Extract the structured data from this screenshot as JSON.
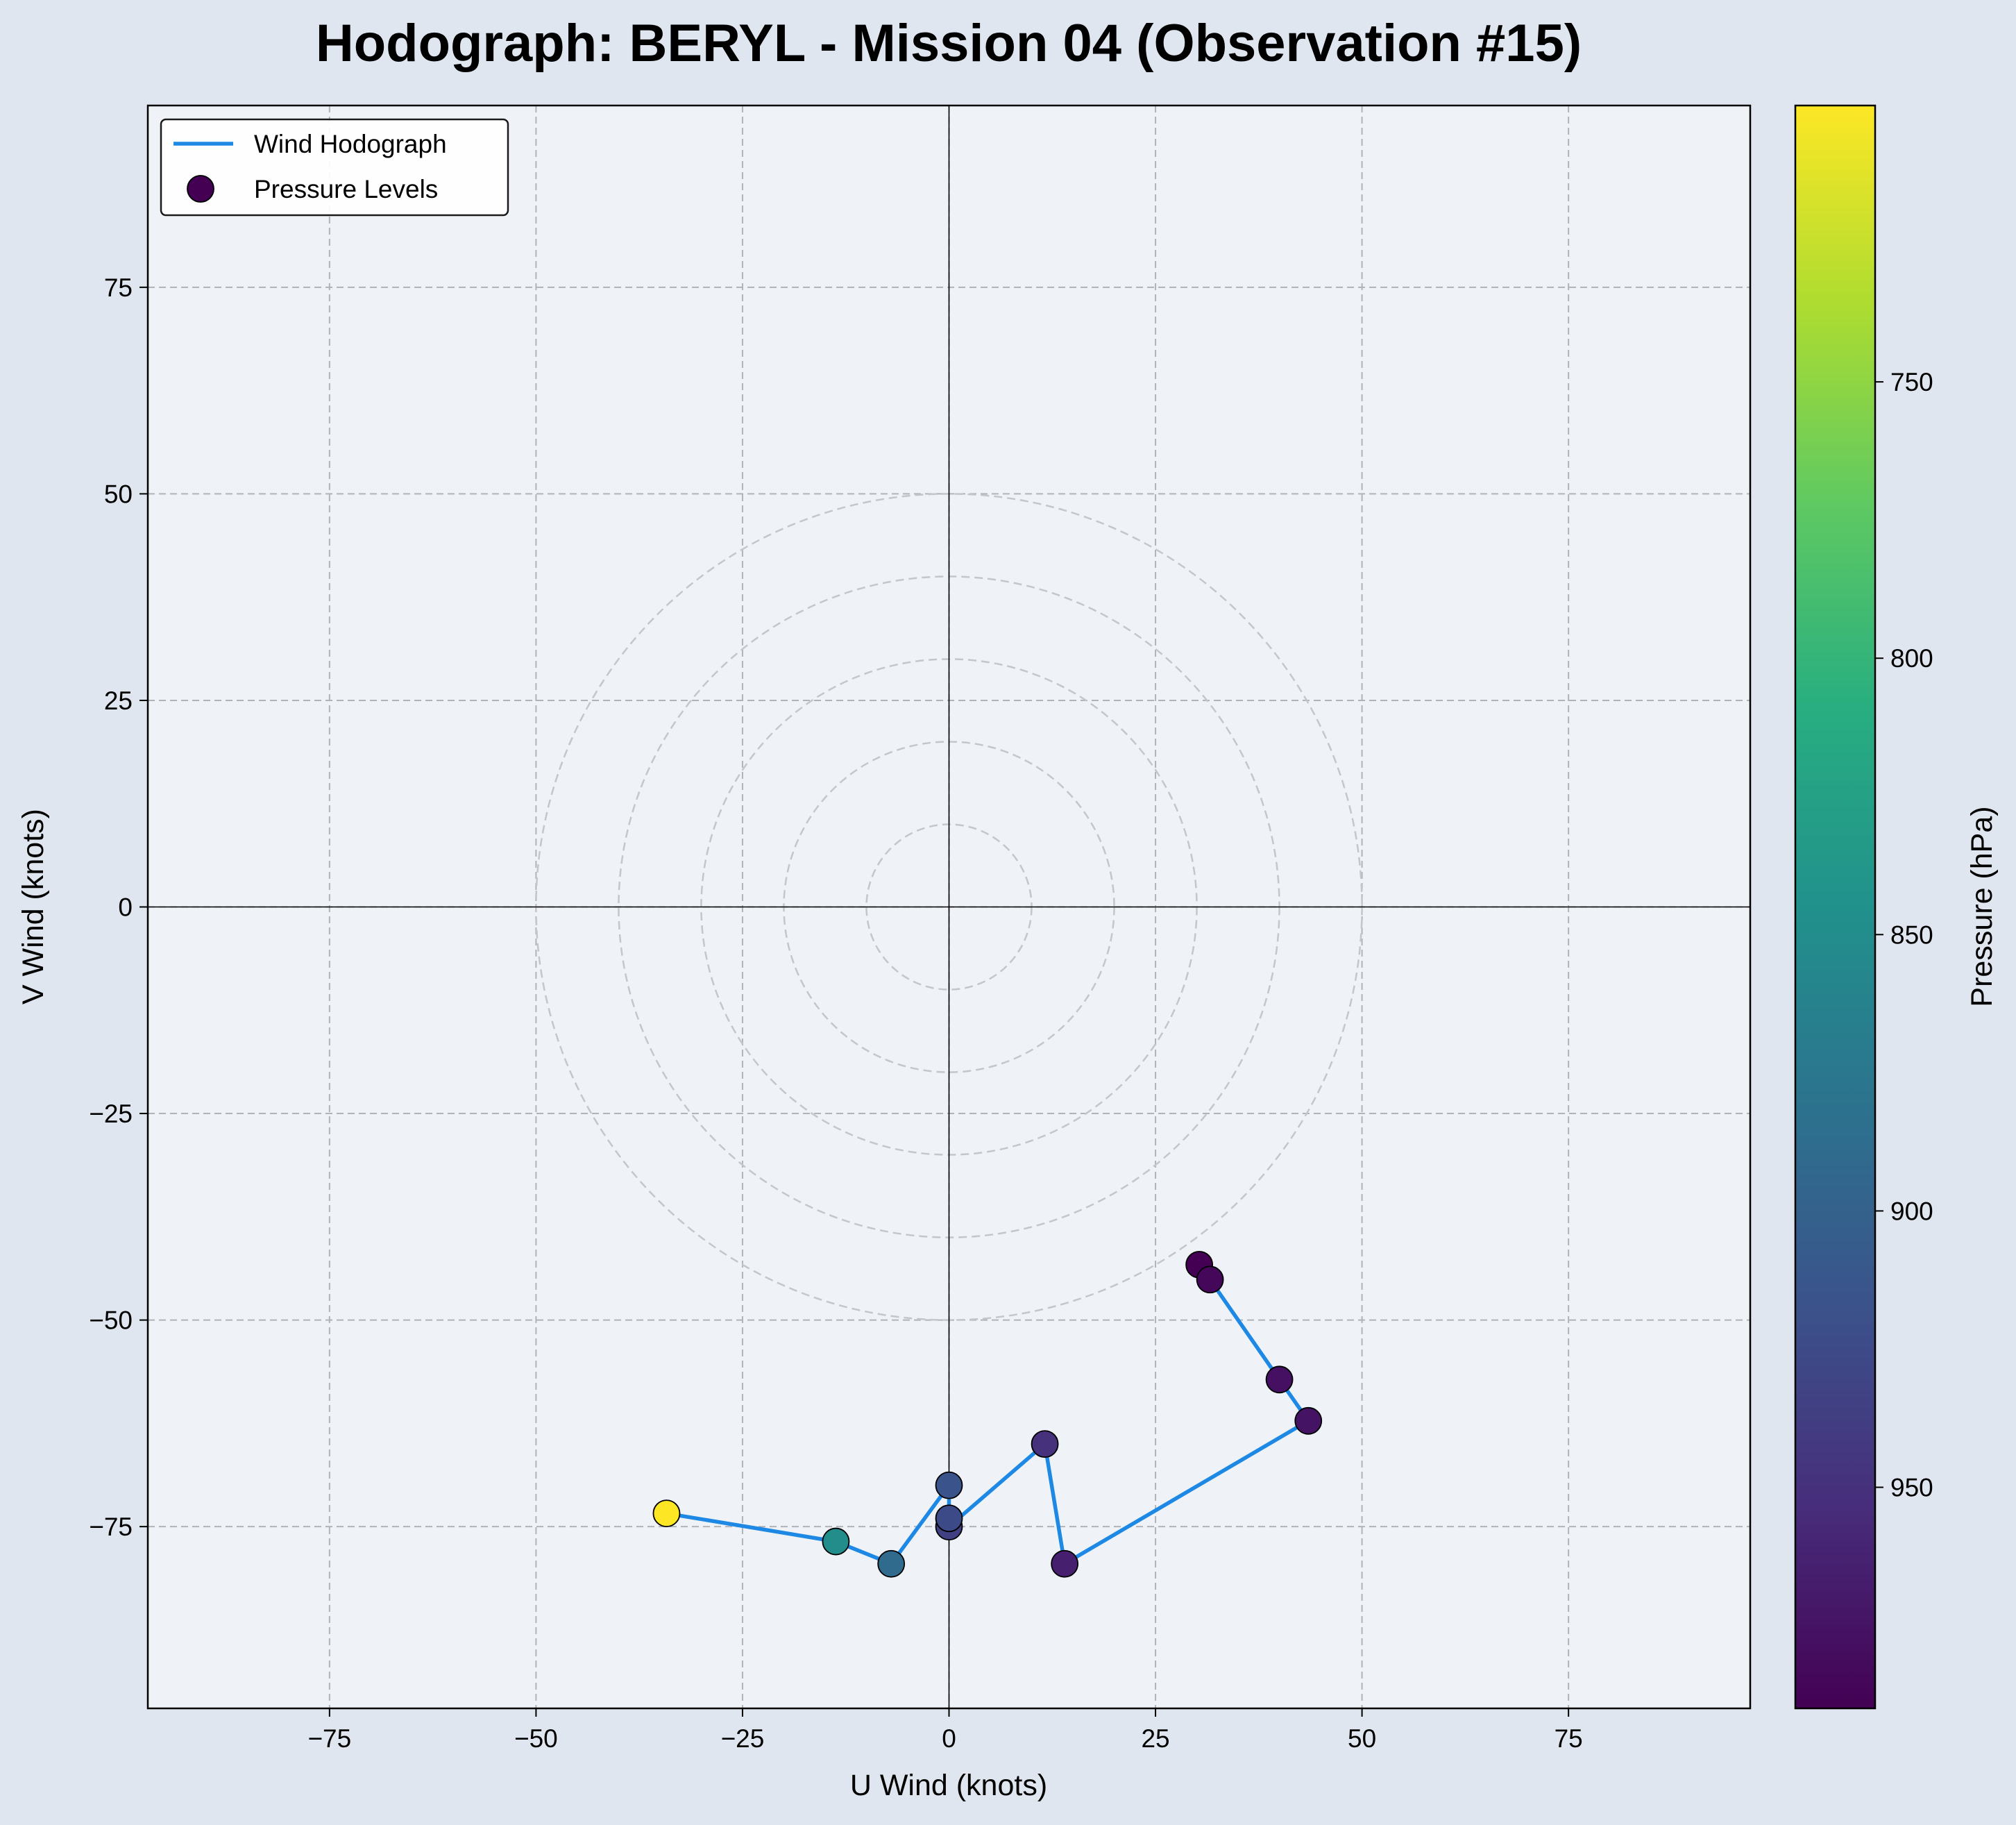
{
  "chart_data": {
    "type": "scatter",
    "title": "Hodograph: BERYL - Mission 04 (Observation #15)",
    "xlabel": "U Wind (knots)",
    "ylabel": "V Wind (knots)",
    "xlim": [
      -97,
      97
    ],
    "ylim": [
      -97,
      97
    ],
    "xticks": [
      -75,
      -50,
      -25,
      0,
      25,
      50,
      75
    ],
    "yticks": [
      -75,
      -50,
      -25,
      0,
      25,
      50,
      75
    ],
    "xtick_labels": [
      "−75",
      "−50",
      "−25",
      "0",
      "25",
      "50",
      "75"
    ],
    "ytick_labels": [
      "−75",
      "−50",
      "−25",
      "0",
      "25",
      "50",
      "75"
    ],
    "grid": true,
    "range_rings": [
      10,
      20,
      30,
      40,
      50
    ],
    "legend": {
      "position": "top-left",
      "entries": [
        "Wind Hodograph",
        "Pressure Levels"
      ]
    },
    "series": [
      {
        "name": "Wind Hodograph",
        "color": "#1e88e5",
        "points": [
          {
            "u": 30.3,
            "v": -43.3,
            "p": 990
          },
          {
            "u": 31.6,
            "v": -45.1,
            "p": 985
          },
          {
            "u": 40.0,
            "v": -57.2,
            "p": 978
          },
          {
            "u": 43.5,
            "v": -62.2,
            "p": 975
          },
          {
            "u": 14.0,
            "v": -79.5,
            "p": 965
          },
          {
            "u": 11.6,
            "v": -65.0,
            "p": 950
          },
          {
            "u": 0.0,
            "v": -75.0,
            "p": 935
          },
          {
            "u": 0.0,
            "v": -74.0,
            "p": 925
          },
          {
            "u": 0.0,
            "v": -70.0,
            "p": 915
          },
          {
            "u": -7.0,
            "v": -79.5,
            "p": 890
          },
          {
            "u": -13.7,
            "v": -76.8,
            "p": 850
          },
          {
            "u": -34.2,
            "v": -73.4,
            "p": 700
          }
        ]
      }
    ],
    "colorbar": {
      "label": "Pressure (hPa)",
      "colormap": "viridis",
      "reversed": true,
      "range": [
        700,
        990
      ],
      "ticks": [
        750,
        800,
        850,
        900,
        950
      ],
      "tick_labels": [
        "750",
        "800",
        "850",
        "900",
        "950"
      ]
    },
    "colors": {
      "figure_background": "#e0e6ef",
      "axes_background": "#eff3f8",
      "line": "#1e88e5"
    }
  }
}
